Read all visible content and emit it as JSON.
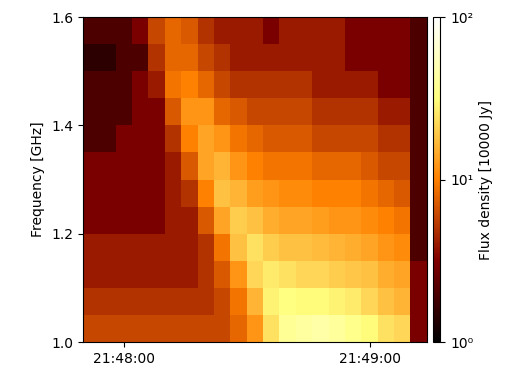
{
  "chart_data": {
    "type": "heatmap",
    "ylabel": "Frequency [GHz]",
    "colorbar_label": "Flux density [10000 Jy]",
    "xlim": [
      78470,
      78554
    ],
    "xticks": [
      {
        "value": 78480,
        "label": "21:48:00"
      },
      {
        "value": 78540,
        "label": "21:49:00"
      }
    ],
    "ylim": [
      1.0,
      1.6
    ],
    "yticks": [
      1.0,
      1.2,
      1.4,
      1.6
    ],
    "x_edges": [
      78470,
      78474,
      78478,
      78482,
      78486,
      78490,
      78494,
      78498,
      78502,
      78506,
      78510,
      78514,
      78518,
      78522,
      78526,
      78530,
      78534,
      78538,
      78542,
      78546,
      78550,
      78554
    ],
    "y_edges": [
      1.0,
      1.05,
      1.1,
      1.15,
      1.2,
      1.25,
      1.3,
      1.35,
      1.4,
      1.45,
      1.5,
      1.55,
      1.6
    ],
    "cells": [
      [
        6,
        6,
        6,
        6,
        6,
        6,
        6,
        6,
        6,
        8,
        12,
        24,
        38,
        42,
        45,
        40,
        35,
        30,
        24,
        22,
        3
      ],
      [
        5,
        5,
        5,
        5,
        5,
        5,
        5,
        5,
        6,
        9,
        16,
        28,
        32,
        30,
        30,
        28,
        26,
        22,
        18,
        16,
        3
      ],
      [
        4,
        4,
        4,
        4,
        4,
        4,
        4,
        5,
        7,
        12,
        22,
        26,
        24,
        22,
        22,
        20,
        19,
        18,
        15,
        14,
        3
      ],
      [
        4,
        4,
        4,
        4,
        4,
        4,
        4,
        5,
        9,
        18,
        24,
        20,
        18,
        18,
        17,
        16,
        15,
        14,
        12,
        11,
        2
      ],
      [
        3,
        3,
        3,
        3,
        3,
        4,
        4,
        7,
        14,
        20,
        18,
        15,
        14,
        14,
        13,
        12,
        12,
        11,
        10,
        9,
        2
      ],
      [
        3,
        3,
        3,
        3,
        3,
        4,
        5,
        10,
        18,
        16,
        13,
        12,
        11,
        11,
        10,
        10,
        10,
        9,
        8,
        7,
        2
      ],
      [
        3,
        3,
        3,
        3,
        3,
        4,
        7,
        14,
        16,
        12,
        10,
        9,
        9,
        9,
        8,
        8,
        8,
        7,
        6,
        6,
        2
      ],
      [
        2,
        2,
        3,
        3,
        3,
        5,
        10,
        14,
        12,
        9,
        8,
        7,
        7,
        7,
        6,
        6,
        6,
        6,
        5,
        5,
        2
      ],
      [
        2,
        2,
        2,
        3,
        3,
        7,
        12,
        12,
        8,
        7,
        6,
        6,
        6,
        6,
        5,
        5,
        5,
        5,
        4,
        4,
        2
      ],
      [
        2,
        2,
        2,
        3,
        4,
        9,
        10,
        8,
        6,
        5,
        5,
        5,
        5,
        5,
        4,
        4,
        4,
        4,
        3,
        3,
        2
      ],
      [
        1.5,
        1.5,
        2,
        2,
        5,
        8,
        8,
        6,
        5,
        4,
        4,
        4,
        4,
        4,
        4,
        4,
        3,
        3,
        3,
        3,
        2
      ],
      [
        2,
        2,
        2,
        3,
        6,
        8,
        7,
        5,
        4,
        4,
        4,
        3,
        4,
        4,
        4,
        4,
        3,
        3,
        3,
        3,
        2
      ]
    ],
    "color_range": [
      1,
      100
    ],
    "color_ticks": [
      {
        "value": 1,
        "label": "10⁰"
      },
      {
        "value": 10,
        "label": "10¹"
      },
      {
        "value": 100,
        "label": "10²"
      }
    ]
  }
}
